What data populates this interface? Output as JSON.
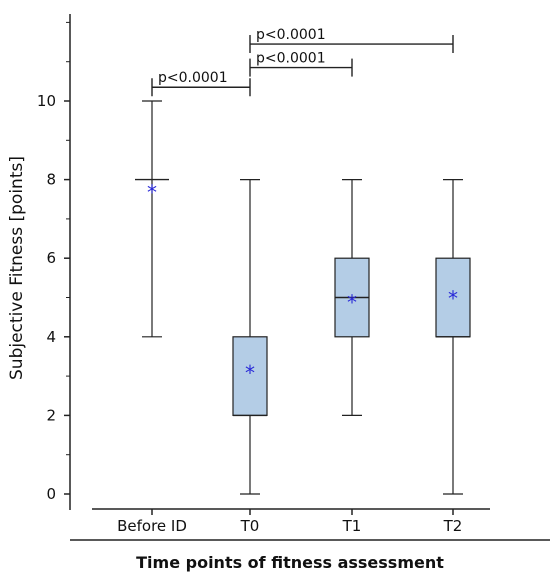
{
  "chart_data": {
    "type": "box",
    "ylabel": "Subjective Fitness [points]",
    "xlabel": "Time points of fitness assessment",
    "ylim": [
      0,
      12
    ],
    "yticks": [
      0,
      2,
      4,
      6,
      8,
      10
    ],
    "grid": false,
    "categories": [
      "Before ID",
      "T0",
      "T1",
      "T2"
    ],
    "boxes": [
      {
        "category": "Before ID",
        "min": 4,
        "q1": 8,
        "median": 8,
        "q3": 8,
        "max": 10,
        "mean": 7.7
      },
      {
        "category": "T0",
        "min": 0,
        "q1": 2,
        "median": 2,
        "q3": 4,
        "max": 8,
        "mean": 3.1
      },
      {
        "category": "T1",
        "min": 2,
        "q1": 4,
        "median": 5,
        "q3": 6,
        "max": 8,
        "mean": 4.9
      },
      {
        "category": "T2",
        "min": 0,
        "q1": 4,
        "median": 4,
        "q3": 6,
        "max": 8,
        "mean": 5.0
      }
    ],
    "annotations": [
      {
        "from": "Before ID",
        "to": "T0",
        "level": 10.35,
        "text": "p<0.0001"
      },
      {
        "from": "T0",
        "to": "T1",
        "level": 10.85,
        "text": "p<0.0001"
      },
      {
        "from": "T0",
        "to": "T2",
        "level": 11.45,
        "text": "p<0.0001"
      }
    ],
    "colors": {
      "box_fill": "#b4cde6",
      "mean_marker": "#2a2ad8",
      "line": "#222222"
    }
  }
}
